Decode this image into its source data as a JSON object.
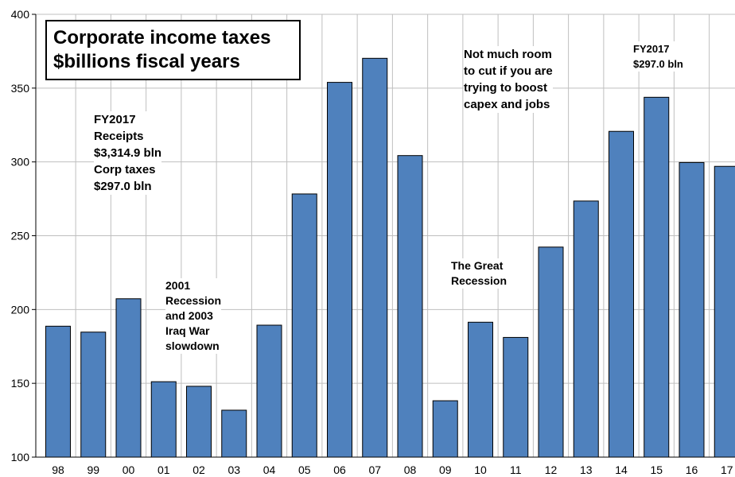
{
  "chart_data": {
    "type": "bar",
    "title_lines": [
      "Corporate income taxes",
      "$billions fiscal years"
    ],
    "categories": [
      "98",
      "99",
      "00",
      "01",
      "02",
      "03",
      "04",
      "05",
      "06",
      "07",
      "08",
      "09",
      "10",
      "11",
      "12",
      "13",
      "14",
      "15",
      "16",
      "17"
    ],
    "values": [
      188.7,
      184.7,
      207.3,
      151.1,
      148.0,
      131.8,
      189.4,
      278.3,
      353.9,
      370.2,
      304.3,
      138.2,
      191.4,
      181.1,
      242.3,
      273.5,
      320.7,
      343.8,
      299.6,
      297.0
    ],
    "ylim": [
      100,
      400
    ],
    "yticks": [
      "100",
      "150",
      "200",
      "250",
      "300",
      "350",
      "400"
    ],
    "grid": true,
    "bar_color": "#4F81BD",
    "annotations": {
      "receipts": [
        "FY2017",
        "Receipts",
        "$3,314.9 bln",
        "Corp taxes",
        "$297.0 bln"
      ],
      "recession_2001": [
        "2001",
        "Recession",
        "and 2003",
        "Iraq War",
        "slowdown"
      ],
      "great_recession": [
        "The Great",
        "Recession"
      ],
      "room": [
        "Not much room",
        "to cut if you are",
        "trying to boost",
        "capex and jobs"
      ],
      "fy2017": [
        "FY2017",
        "$297.0 bln"
      ]
    }
  }
}
